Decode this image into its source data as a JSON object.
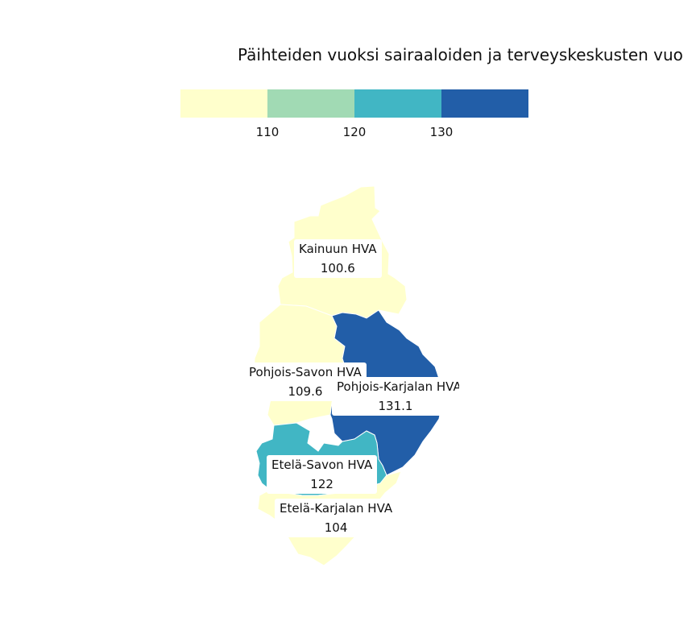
{
  "title": "Päihteiden vuoksi sairaaloiden ja terveyskeskusten vuo",
  "legend": {
    "colors": [
      "#ffffcc",
      "#a1dab4",
      "#41b6c4",
      "#225ea8"
    ],
    "ticks": [
      "110",
      "120",
      "130"
    ]
  },
  "regions": [
    {
      "name": "Kainuun HVA",
      "value": "100.6",
      "color": "#ffffcc"
    },
    {
      "name": "Pohjois-Savon HVA",
      "value": "109.6",
      "color": "#ffffcc"
    },
    {
      "name": "Pohjois-Karjalan HVA",
      "value": "131.1",
      "color": "#225ea8"
    },
    {
      "name": "Etelä-Savon HVA",
      "value": "122",
      "color": "#41b6c4"
    },
    {
      "name": "Etelä-Karjalan HVA",
      "value": "104",
      "color": "#ffffcc"
    }
  ]
}
